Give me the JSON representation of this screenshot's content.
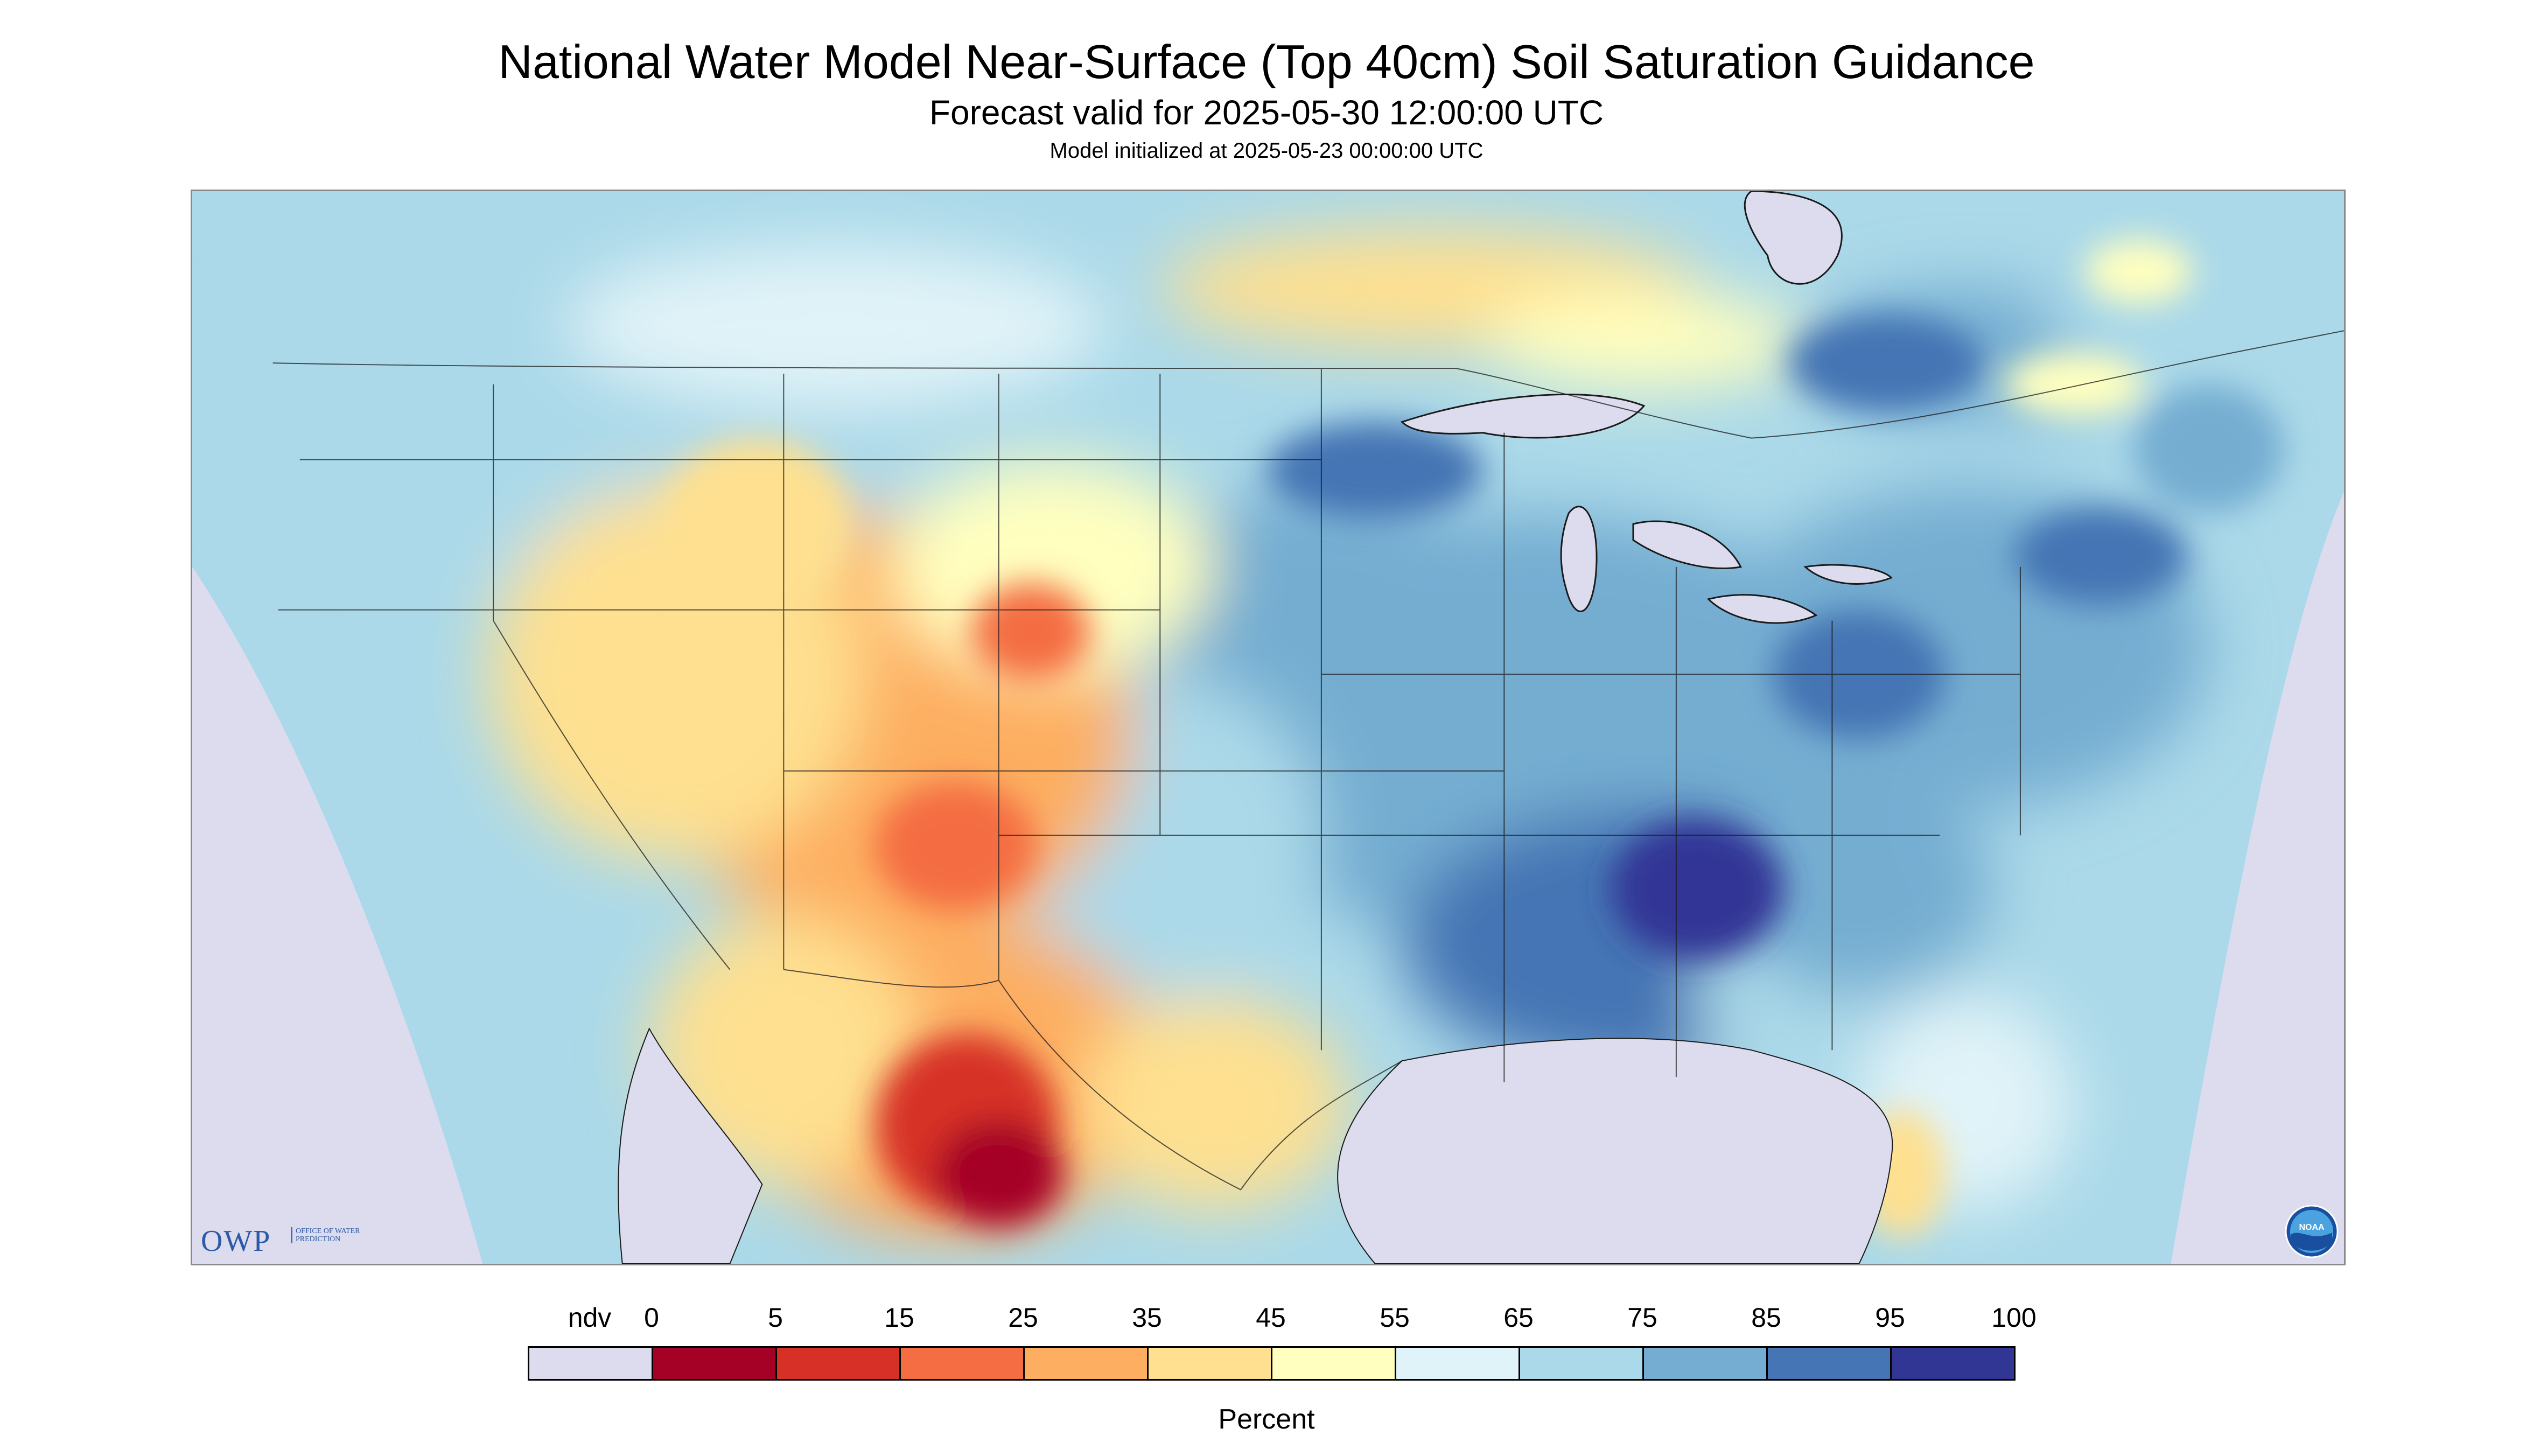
{
  "title": "National Water Model Near-Surface (Top 40cm) Soil Saturation Guidance",
  "subtitle": "Forecast valid for 2025-05-30 12:00:00 UTC",
  "init_text": "Model initialized at 2025-05-23 00:00:00 UTC",
  "logos": {
    "owp_letters": "OWP",
    "owp_sub": "OFFICE OF WATER PREDICTION",
    "noaa": "NOAA"
  },
  "legend": {
    "unit": "Percent",
    "ndv_label": "ndv",
    "ticks": [
      "0",
      "5",
      "15",
      "25",
      "35",
      "45",
      "55",
      "65",
      "75",
      "85",
      "95",
      "100"
    ],
    "bins": [
      {
        "label": "ndv",
        "color": "#dcdcee"
      },
      {
        "label": "0-5",
        "color": "#a50026"
      },
      {
        "label": "5-15",
        "color": "#d73027"
      },
      {
        "label": "15-25",
        "color": "#f46d43"
      },
      {
        "label": "25-35",
        "color": "#fdae61"
      },
      {
        "label": "35-45",
        "color": "#fee090"
      },
      {
        "label": "45-55",
        "color": "#ffffbf"
      },
      {
        "label": "55-65",
        "color": "#e0f3f8"
      },
      {
        "label": "65-75",
        "color": "#abd9e9"
      },
      {
        "label": "75-85",
        "color": "#74add1"
      },
      {
        "label": "85-95",
        "color": "#4575b4"
      },
      {
        "label": "95-100",
        "color": "#313695"
      }
    ]
  },
  "map": {
    "background_color": "#dcdcee",
    "boundary_color": "#1a1a1a"
  }
}
